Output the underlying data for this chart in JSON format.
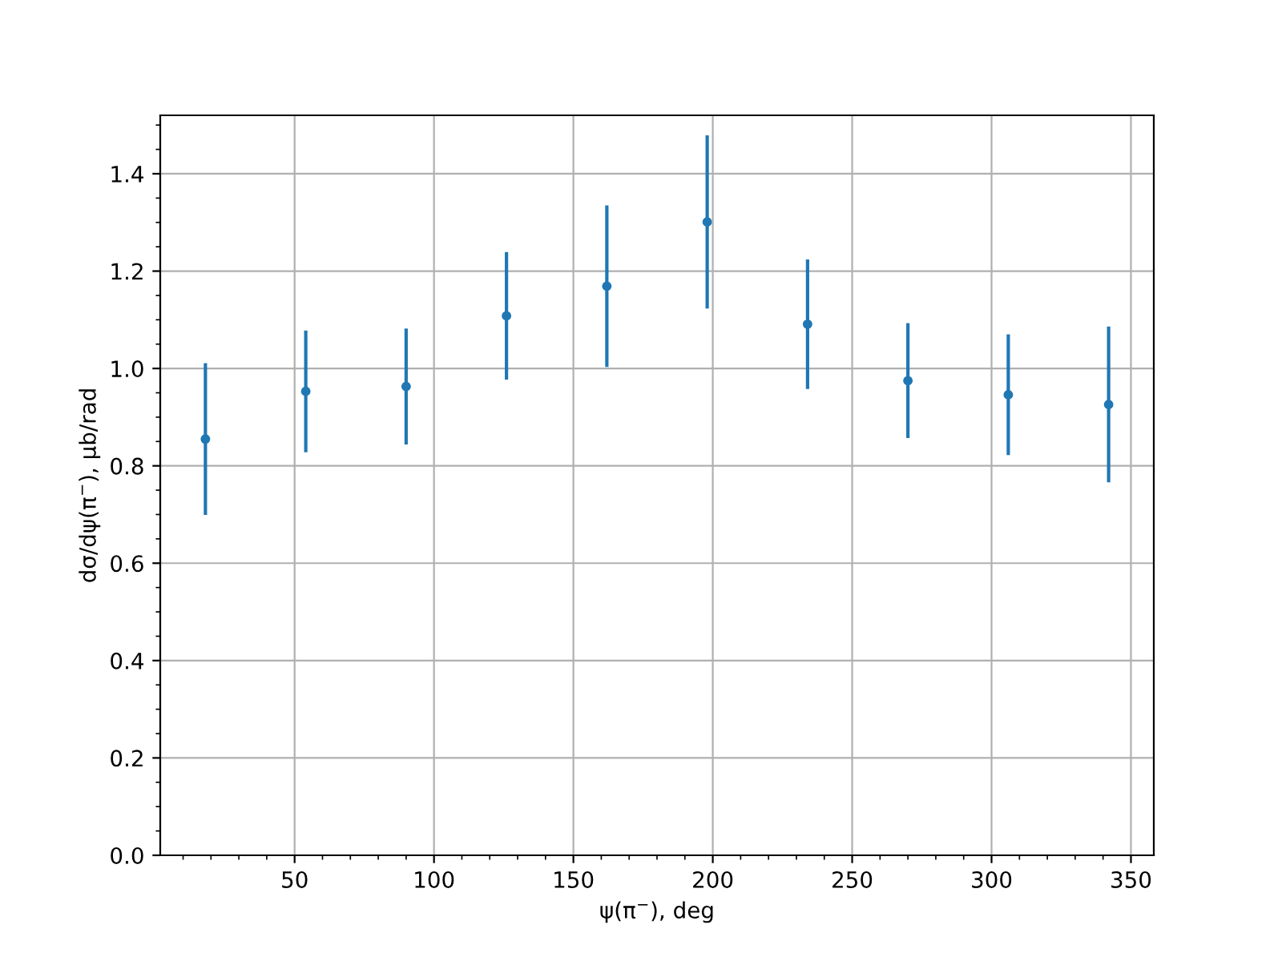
{
  "chart_data": {
    "type": "scatter",
    "xlabel": "ψ(π$^{−}$), deg",
    "ylabel": "dσ/dψ(π$^{−}$), μb/rad",
    "x": [
      18,
      54,
      90,
      126,
      162,
      198,
      234,
      270,
      306,
      342
    ],
    "series": [
      {
        "color": "#1f77b4",
        "values": [
          0.855,
          0.953,
          0.963,
          1.108,
          1.169,
          1.301,
          1.091,
          0.975,
          0.946,
          0.926
        ],
        "errors": [
          0.156,
          0.125,
          0.119,
          0.131,
          0.166,
          0.178,
          0.133,
          0.118,
          0.124,
          0.16
        ]
      }
    ],
    "xlim": [
      1.8,
      358.2
    ],
    "xticks": [
      50,
      100,
      150,
      200,
      250,
      300,
      350
    ],
    "ylim": [
      0,
      1.52
    ],
    "yticks": [
      {
        "value": 0,
        "label": "0.0"
      },
      {
        "value": 0.2,
        "label": "0.2"
      },
      {
        "value": 0.4,
        "label": "0.4"
      },
      {
        "value": 0.6,
        "label": "0.6"
      },
      {
        "value": 0.8,
        "label": "0.8"
      },
      {
        "value": 1.0,
        "label": "1.0"
      },
      {
        "value": 1.2,
        "label": "1.2"
      },
      {
        "value": 1.4,
        "label": "1.4"
      }
    ],
    "grid": true,
    "marker": "circle"
  }
}
